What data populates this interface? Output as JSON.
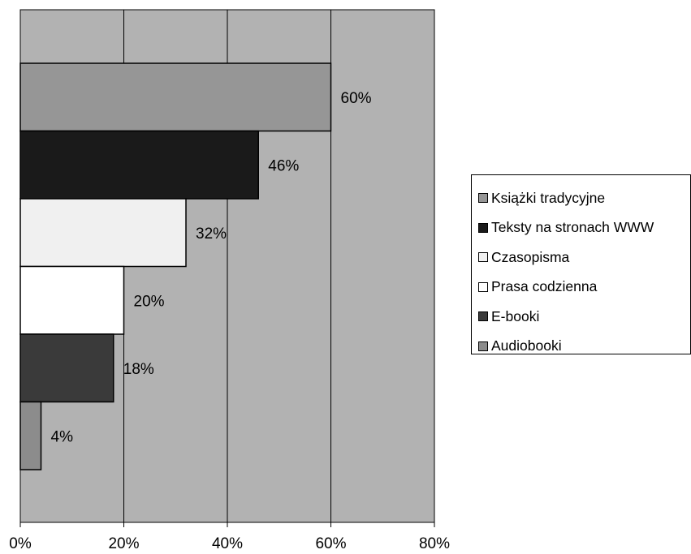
{
  "chart_data": {
    "type": "bar",
    "orientation": "horizontal",
    "categories": [
      "Książki tradycyjne",
      "Teksty na stronach WWW",
      "Czasopisma",
      "Prasa codzienna",
      "E-booki",
      "Audiobooki"
    ],
    "values": [
      60,
      46,
      32,
      20,
      18,
      4
    ],
    "data_labels": [
      "60%",
      "46%",
      "32%",
      "20%",
      "18%",
      "4%"
    ],
    "bar_colors": [
      "#969696",
      "#1a1a1a",
      "#f0f0f0",
      "#ffffff",
      "#3a3a3a",
      "#8c8c8c"
    ],
    "xlim": [
      0,
      80
    ],
    "x_ticks": [
      0,
      20,
      40,
      60,
      80
    ],
    "x_tick_labels": [
      "0%",
      "20%",
      "40%",
      "60%",
      "80%"
    ],
    "grid": true,
    "plot_background": "#b2b2b2",
    "legend_placement": "right",
    "title": "",
    "xlabel": "",
    "ylabel": ""
  }
}
